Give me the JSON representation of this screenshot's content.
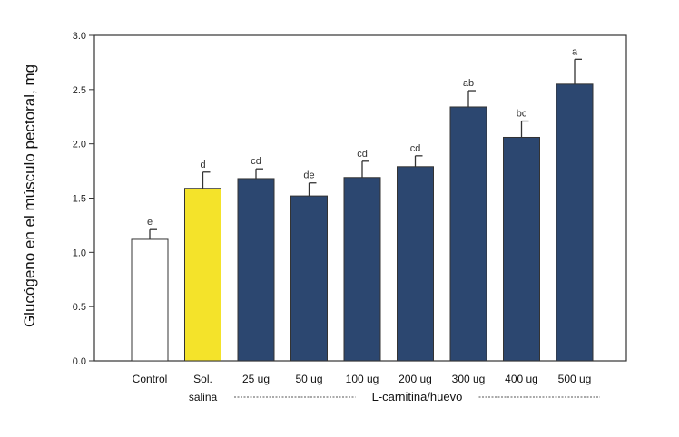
{
  "chart_data": {
    "type": "bar",
    "title": "",
    "xlabel": "",
    "ylabel": "Glucógeno en el músculo pectoral, mg",
    "ylim": [
      0,
      3.0
    ],
    "yticks": [
      "0.0",
      "0.5",
      "1.0",
      "1.5",
      "2.0",
      "2.5",
      "3.0"
    ],
    "grid": false,
    "categories": [
      {
        "line1": "Control",
        "line2": ""
      },
      {
        "line1": "Sol.",
        "line2": "salina"
      },
      {
        "line1": "25 ug",
        "line2": ""
      },
      {
        "line1": "50 ug",
        "line2": ""
      },
      {
        "line1": "100 ug",
        "line2": ""
      },
      {
        "line1": "200 ug",
        "line2": ""
      },
      {
        "line1": "300 ug",
        "line2": ""
      },
      {
        "line1": "400 ug",
        "line2": ""
      },
      {
        "line1": "500 ug",
        "line2": ""
      }
    ],
    "values": [
      1.12,
      1.59,
      1.68,
      1.52,
      1.69,
      1.79,
      2.34,
      2.06,
      2.55
    ],
    "errors": [
      0.09,
      0.15,
      0.09,
      0.12,
      0.15,
      0.1,
      0.15,
      0.15,
      0.23
    ],
    "significance": [
      "e",
      "d",
      "cd",
      "de",
      "cd",
      "cd",
      "ab",
      "bc",
      "a"
    ],
    "group_label": "L-carnitina/huevo",
    "colors": {
      "control_fill": "#ffffff",
      "saline_fill": "#f4e32a",
      "treatment_fill": "#2c4770",
      "bar_stroke": "#333333",
      "axis": "#333333"
    }
  }
}
